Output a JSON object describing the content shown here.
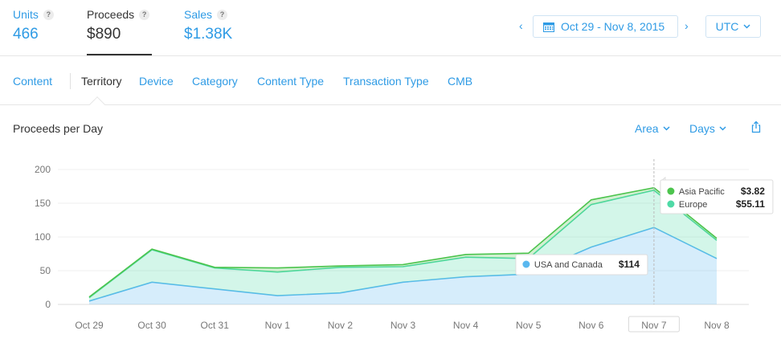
{
  "metrics": {
    "units": {
      "label": "Units",
      "value": "466",
      "help": "?"
    },
    "proceeds": {
      "label": "Proceeds",
      "value": "$890",
      "help": "?"
    },
    "sales": {
      "label": "Sales",
      "value": "$1.38K",
      "help": "?"
    }
  },
  "date_nav": {
    "prev_icon": "‹",
    "next_icon": "›",
    "range": "Oct 29 - Nov 8, 2015",
    "calendar_icon": "calendar-icon"
  },
  "timezone": {
    "value": "UTC"
  },
  "tabs": [
    {
      "label": "Content",
      "active": false
    },
    {
      "label": "Territory",
      "active": true
    },
    {
      "label": "Device",
      "active": false
    },
    {
      "label": "Category",
      "active": false
    },
    {
      "label": "Content Type",
      "active": false
    },
    {
      "label": "Transaction Type",
      "active": false
    },
    {
      "label": "CMB",
      "active": false
    }
  ],
  "chart_header": {
    "title": "Proceeds per Day",
    "chart_type": "Area",
    "interval": "Days",
    "share_icon": "share-icon"
  },
  "colors": {
    "accent": "#2f9be5",
    "usa_canada": "#5ab8ef",
    "europe": "#4fdaa6",
    "asia_pacific": "#4cc44d"
  },
  "chart_data": {
    "type": "area",
    "stacked": true,
    "categories": [
      "Oct 29",
      "Oct 30",
      "Oct 31",
      "Nov 1",
      "Nov 2",
      "Nov 3",
      "Nov 4",
      "Nov 5",
      "Nov 6",
      "Nov 7",
      "Nov 8"
    ],
    "ylim": [
      0,
      200
    ],
    "yticks": [
      0,
      50,
      100,
      150,
      200
    ],
    "grid": true,
    "highlighted_category": "Nov 7",
    "series": [
      {
        "name": "USA and Canada",
        "color": "#5ab8ef",
        "values": [
          5,
          33,
          23,
          13,
          17,
          33,
          41,
          45,
          85,
          114,
          68
        ]
      },
      {
        "name": "Europe",
        "color": "#4fdaa6",
        "values": [
          5,
          48,
          31,
          35,
          38,
          23,
          29,
          23,
          63,
          55.11,
          27
        ]
      },
      {
        "name": "Asia Pacific",
        "color": "#4cc44d",
        "values": [
          1,
          1,
          1,
          6,
          2,
          3,
          4,
          8,
          7,
          3.82,
          3
        ]
      }
    ],
    "tooltips": [
      {
        "name": "Asia Pacific",
        "value": "$3.82"
      },
      {
        "name": "Europe",
        "value": "$55.11"
      },
      {
        "name": "USA and Canada",
        "value": "$114"
      }
    ]
  }
}
